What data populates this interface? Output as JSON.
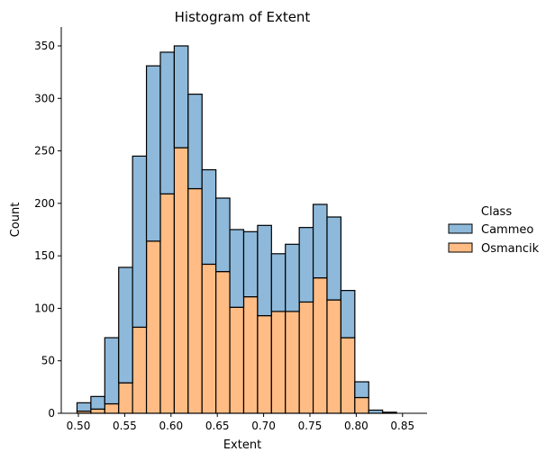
{
  "chart_data": {
    "type": "bar",
    "stacked": true,
    "title": "Histogram of Extent",
    "xlabel": "Extent",
    "ylabel": "Count",
    "xlim": [
      0.4815,
      0.8765
    ],
    "ylim": [
      0,
      368
    ],
    "x_ticks": [
      0.5,
      0.55,
      0.6,
      0.65,
      0.7,
      0.75,
      0.8,
      0.85
    ],
    "x_tick_labels": [
      "0.50",
      "0.55",
      "0.60",
      "0.65",
      "0.70",
      "0.75",
      "0.80",
      "0.85"
    ],
    "y_ticks": [
      0,
      50,
      100,
      150,
      200,
      250,
      300,
      350
    ],
    "y_tick_labels": [
      "0",
      "50",
      "100",
      "150",
      "200",
      "250",
      "300",
      "350"
    ],
    "bin_edges": [
      0.4985,
      0.5135,
      0.5285,
      0.5435,
      0.5585,
      0.5735,
      0.5885,
      0.6035,
      0.6185,
      0.6335,
      0.6485,
      0.6635,
      0.6785,
      0.6935,
      0.7085,
      0.7235,
      0.7385,
      0.7535,
      0.7685,
      0.7835,
      0.7985,
      0.8135,
      0.8285,
      0.8435,
      0.8585
    ],
    "legend": {
      "title": "Class",
      "placement": "right",
      "entries": [
        "Cammeo",
        "Osmancik"
      ]
    },
    "series": [
      {
        "name": "Osmancik",
        "color": "#ffbc84",
        "edge_color": "#000000",
        "values": [
          2,
          4,
          9,
          29,
          82,
          164,
          209,
          253,
          214,
          142,
          135,
          101,
          111,
          93,
          97,
          97,
          106,
          129,
          108,
          72,
          15,
          0,
          0,
          0
        ]
      },
      {
        "name": "Cammeo",
        "color": "#8eb9da",
        "edge_color": "#000000",
        "values": [
          8,
          12,
          63,
          110,
          163,
          167,
          135,
          97,
          90,
          90,
          70,
          74,
          62,
          86,
          55,
          64,
          71,
          70,
          79,
          45,
          15,
          3,
          1,
          0
        ]
      }
    ]
  }
}
